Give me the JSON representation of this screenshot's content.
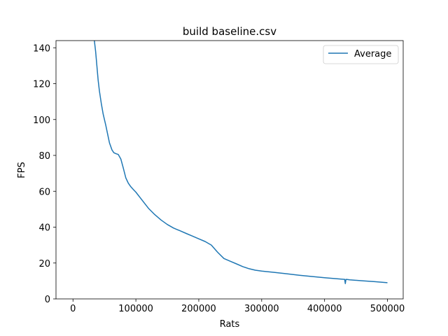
{
  "chart_data": {
    "type": "line",
    "title": "build baseline.csv",
    "xlabel": "Rats",
    "ylabel": "FPS",
    "xlim": [
      -27000,
      525000
    ],
    "ylim": [
      0,
      144
    ],
    "xticks": [
      0,
      100000,
      200000,
      300000,
      400000,
      500000
    ],
    "yticks": [
      0,
      20,
      40,
      60,
      80,
      100,
      120,
      140
    ],
    "grid": false,
    "legend_position": "top-right",
    "series_color": "#1f77b4",
    "series": [
      {
        "name": "Average",
        "x": [
          34000,
          36000,
          38000,
          40000,
          42000,
          45000,
          48000,
          52000,
          55000,
          58000,
          62000,
          65000,
          68000,
          72000,
          76000,
          80000,
          84000,
          88000,
          92000,
          96000,
          100000,
          110000,
          120000,
          130000,
          140000,
          150000,
          160000,
          170000,
          180000,
          190000,
          200000,
          210000,
          220000,
          230000,
          240000,
          250000,
          260000,
          270000,
          280000,
          290000,
          300000,
          320000,
          340000,
          360000,
          380000,
          400000,
          420000,
          432000,
          433000,
          434000,
          436000,
          440000,
          460000,
          480000,
          500000
        ],
        "y": [
          144,
          138,
          130,
          122,
          116,
          109,
          103,
          97,
          92,
          87,
          83,
          81.5,
          81,
          80.5,
          78,
          73,
          67.5,
          64.5,
          62.5,
          61,
          59.5,
          55,
          50.5,
          47,
          44,
          41.5,
          39.5,
          38,
          36.5,
          35,
          33.5,
          32,
          30,
          26,
          22.5,
          21,
          19.5,
          18,
          16.8,
          16,
          15.5,
          14.8,
          14,
          13.2,
          12.5,
          11.8,
          11.2,
          10.9,
          8.5,
          10.9,
          10.8,
          10.6,
          10.1,
          9.6,
          9
        ]
      }
    ]
  }
}
